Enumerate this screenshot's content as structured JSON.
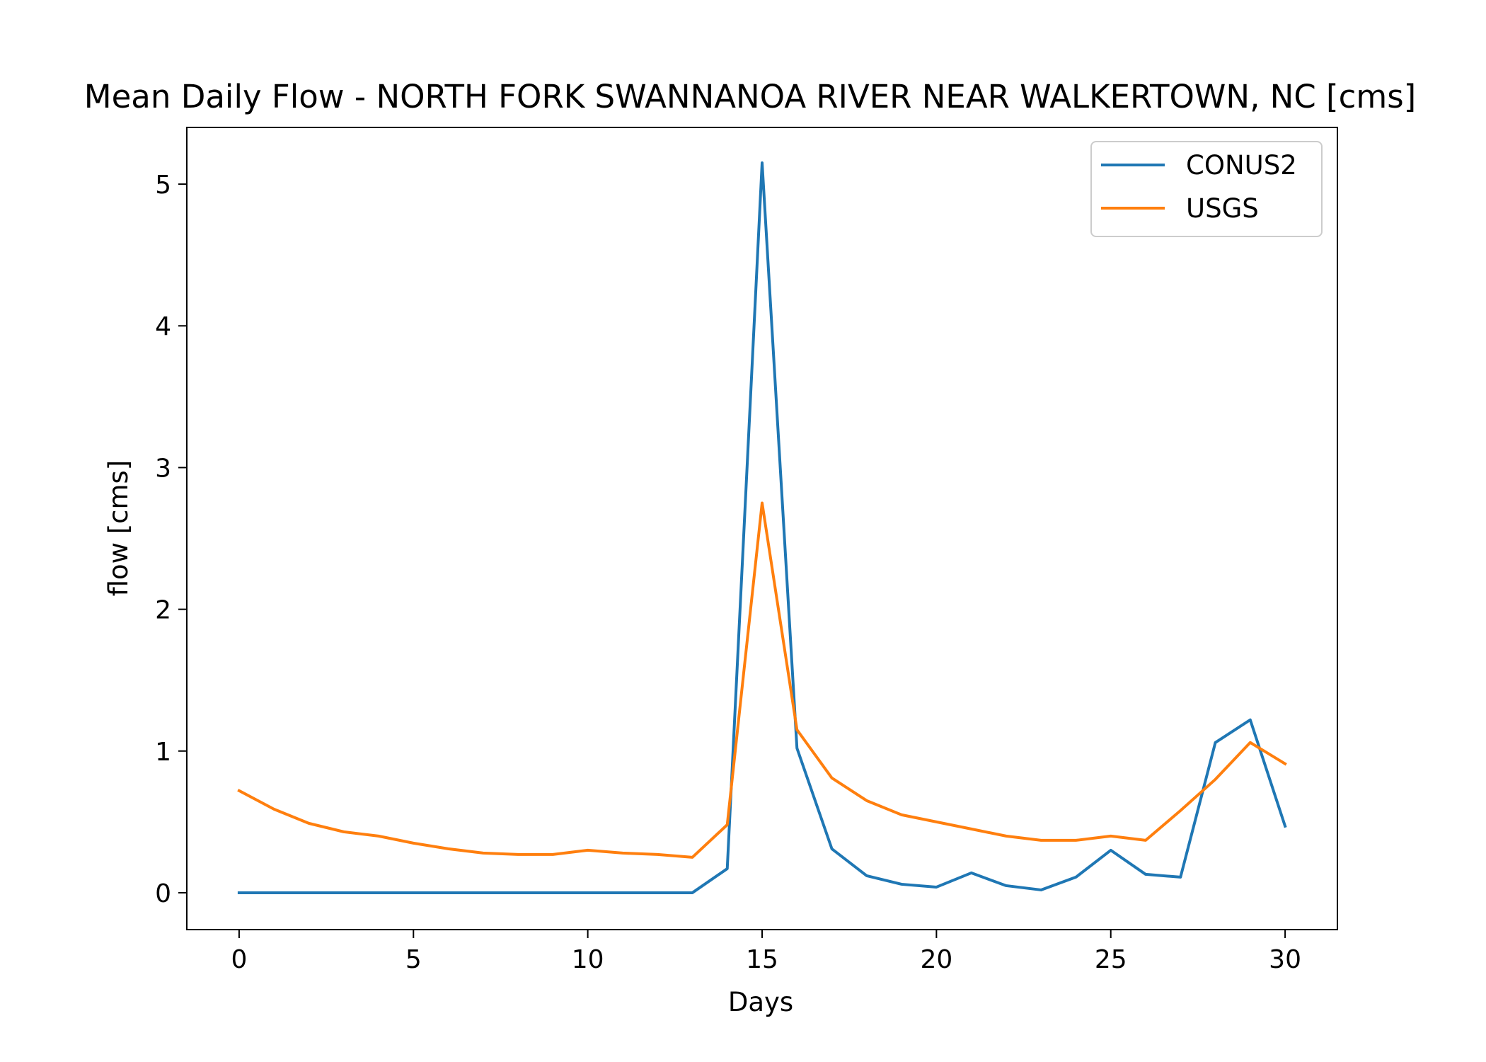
{
  "chart_data": {
    "type": "line",
    "title": "Mean Daily Flow - NORTH FORK SWANNANOA RIVER NEAR WALKERTOWN, NC [cms]",
    "xlabel": "Days",
    "ylabel": "flow [cms]",
    "xlim": [
      -1.5,
      31.5
    ],
    "ylim": [
      -0.26,
      5.4
    ],
    "xticks": [
      0,
      5,
      10,
      15,
      20,
      25,
      30
    ],
    "yticks": [
      0,
      1,
      2,
      3,
      4,
      5
    ],
    "grid": false,
    "legend_position": "top-right",
    "x": [
      0,
      1,
      2,
      3,
      4,
      5,
      6,
      7,
      8,
      9,
      10,
      11,
      12,
      13,
      14,
      15,
      16,
      17,
      18,
      19,
      20,
      21,
      22,
      23,
      24,
      25,
      26,
      27,
      28,
      29,
      30
    ],
    "series": [
      {
        "name": "CONUS2",
        "color": "#1f77b4",
        "values": [
          0,
          0,
          0,
          0,
          0,
          0,
          0,
          0,
          0,
          0,
          0,
          0,
          0,
          0,
          0.17,
          5.15,
          1.02,
          0.31,
          0.12,
          0.06,
          0.04,
          0.14,
          0.05,
          0.02,
          0.11,
          0.3,
          0.13,
          0.11,
          1.06,
          1.22,
          0.47
        ]
      },
      {
        "name": "USGS",
        "color": "#ff7f0e",
        "values": [
          0.72,
          0.59,
          0.49,
          0.43,
          0.4,
          0.35,
          0.31,
          0.28,
          0.27,
          0.27,
          0.3,
          0.28,
          0.27,
          0.25,
          0.48,
          2.75,
          1.15,
          0.81,
          0.65,
          0.55,
          0.5,
          0.45,
          0.4,
          0.37,
          0.37,
          0.4,
          0.37,
          0.58,
          0.8,
          1.06,
          0.91
        ]
      }
    ]
  }
}
